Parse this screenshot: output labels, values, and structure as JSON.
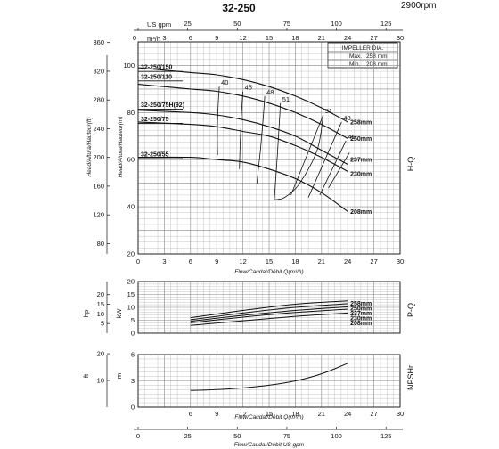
{
  "header": {
    "title": "32-250",
    "rpm": "2900rpm"
  },
  "top_axis": {
    "usgpm_label": "US gpm",
    "usgpm_ticks": [
      "0",
      "25",
      "50",
      "75",
      "100",
      "125"
    ],
    "m3h_label": "m³/h",
    "m3h_ticks": [
      "0",
      "3",
      "6",
      "9",
      "12",
      "15",
      "18",
      "21",
      "24",
      "27",
      "30"
    ]
  },
  "impeller_box": {
    "title": "IMPELLER DIA.",
    "max_label": "Max.",
    "max_value": "258 mm",
    "min_label": "Min.",
    "min_value": "208 mm"
  },
  "side_labels": {
    "hq": "H-Q",
    "pq": "P-Q",
    "npsh": "NPSHr"
  },
  "hq_panel": {
    "xlabel": "Flow/Caudal/Débit Q(m³/h)",
    "ylabel_ft": "Head/Altura/Hauteur(ft)",
    "ylabel_m": "Head/Altura/Hauteur(m)",
    "ft_ticks": [
      "360",
      "320",
      "280",
      "240",
      "200",
      "160",
      "120",
      "80"
    ],
    "m_ticks": [
      "100",
      "80",
      "60",
      "40",
      "20"
    ],
    "x_ticks": [
      "0",
      "3",
      "6",
      "9",
      "12",
      "15",
      "18",
      "21",
      "24",
      "27",
      "30"
    ],
    "model_labels": [
      "32-250/150",
      "32-250/110",
      "32-250/75H(92)",
      "32-250/75",
      "32-250/55"
    ],
    "efficiency_labels": [
      "40",
      "45",
      "48",
      "51",
      "51",
      "48",
      "45"
    ],
    "curve_labels": [
      "258mm",
      "250mm",
      "237mm",
      "230mm",
      "208mm"
    ]
  },
  "pq_panel": {
    "ylabel_hp": "hp",
    "ylabel_kw": "kW",
    "hp_ticks": [
      "20",
      "15",
      "10",
      "5"
    ],
    "kw_ticks": [
      "20",
      "15",
      "10",
      "5",
      "0"
    ],
    "curve_labels": [
      "258mm",
      "250mm",
      "237mm",
      "230mm",
      "208mm"
    ]
  },
  "npsh_panel": {
    "ylabel_ft": "ft",
    "ylabel_m": "m",
    "ft_ticks": [
      "20",
      "10"
    ],
    "m_ticks": [
      "6",
      "3",
      "0"
    ],
    "x_ticks": [
      "6",
      "9",
      "12",
      "15",
      "18",
      "21",
      "24",
      "27",
      "30"
    ],
    "xlabel": "Flow/Caudal/Débit Q(m³/h)"
  },
  "bottom_axis": {
    "ticks": [
      "0",
      "25",
      "50",
      "75",
      "100",
      "125"
    ],
    "xlabel": "Flow/Caudal/Débit  US gpm"
  },
  "colors": {
    "grid": "#888888",
    "curve": "#111111",
    "background": "#ffffff"
  },
  "chart_data": [
    {
      "type": "line",
      "title": "32-250",
      "xlabel": "Flow/Caudal/Débit Q(m³/h)",
      "ylabel": "Head/Altura/Hauteur(m)",
      "xlim": [
        0,
        30
      ],
      "ylim": [
        20,
        110
      ],
      "grid": true,
      "series": [
        {
          "name": "258mm",
          "x": [
            0,
            6,
            9,
            12,
            15,
            18,
            21,
            24
          ],
          "y": [
            99,
            97,
            96,
            94,
            91,
            87,
            82,
            76
          ]
        },
        {
          "name": "250mm",
          "x": [
            0,
            6,
            9,
            12,
            15,
            18,
            21,
            24
          ],
          "y": [
            92,
            90,
            89,
            87,
            84,
            80,
            75,
            69
          ]
        },
        {
          "name": "237mm",
          "x": [
            0,
            6,
            9,
            12,
            15,
            18,
            21,
            24
          ],
          "y": [
            81,
            80,
            79,
            77,
            74,
            70,
            64,
            58
          ]
        },
        {
          "name": "230mm",
          "x": [
            0,
            6,
            9,
            12,
            15,
            18,
            21,
            24
          ],
          "y": [
            76,
            75,
            74,
            72,
            70,
            66,
            61,
            55
          ]
        },
        {
          "name": "208mm",
          "x": [
            0,
            6,
            9,
            12,
            15,
            18,
            21,
            24
          ],
          "y": [
            61,
            61,
            60,
            59,
            56,
            52,
            46,
            38
          ]
        }
      ],
      "efficiency_points": [
        {
          "label": "40",
          "x": 9.3,
          "y": 91
        },
        {
          "label": "45",
          "x": 12.0,
          "y": 89
        },
        {
          "label": "48",
          "x": 14.5,
          "y": 87
        },
        {
          "label": "51",
          "x": 16.3,
          "y": 84
        },
        {
          "label": "51",
          "x": 21.2,
          "y": 79
        },
        {
          "label": "48",
          "x": 23.3,
          "y": 76
        },
        {
          "label": "45",
          "x": 23.8,
          "y": 68
        }
      ]
    },
    {
      "type": "line",
      "xlim": [
        0,
        30
      ],
      "ylim": [
        0,
        20
      ],
      "ylabel": "kW",
      "grid": true,
      "series": [
        {
          "name": "258mm",
          "x": [
            6,
            12,
            18,
            24
          ],
          "y": [
            6.0,
            8.8,
            11.2,
            12.5
          ]
        },
        {
          "name": "250mm",
          "x": [
            6,
            12,
            18,
            24
          ],
          "y": [
            5.2,
            7.8,
            10.0,
            11.4
          ]
        },
        {
          "name": "237mm",
          "x": [
            6,
            12,
            18,
            24
          ],
          "y": [
            4.6,
            6.9,
            8.8,
            10.2
          ]
        },
        {
          "name": "230mm",
          "x": [
            6,
            12,
            18,
            24
          ],
          "y": [
            4.0,
            6.2,
            8.0,
            9.3
          ]
        },
        {
          "name": "208mm",
          "x": [
            6,
            12,
            18,
            24
          ],
          "y": [
            3.0,
            4.8,
            6.5,
            7.8
          ]
        }
      ]
    },
    {
      "type": "line",
      "xlim": [
        0,
        30
      ],
      "ylim": [
        0,
        6
      ],
      "ylabel": "m",
      "grid": true,
      "series": [
        {
          "name": "NPSHr",
          "x": [
            6,
            9,
            12,
            15,
            18,
            21,
            24
          ],
          "y": [
            1.9,
            2.0,
            2.2,
            2.5,
            3.0,
            3.8,
            5.0
          ]
        }
      ]
    }
  ]
}
